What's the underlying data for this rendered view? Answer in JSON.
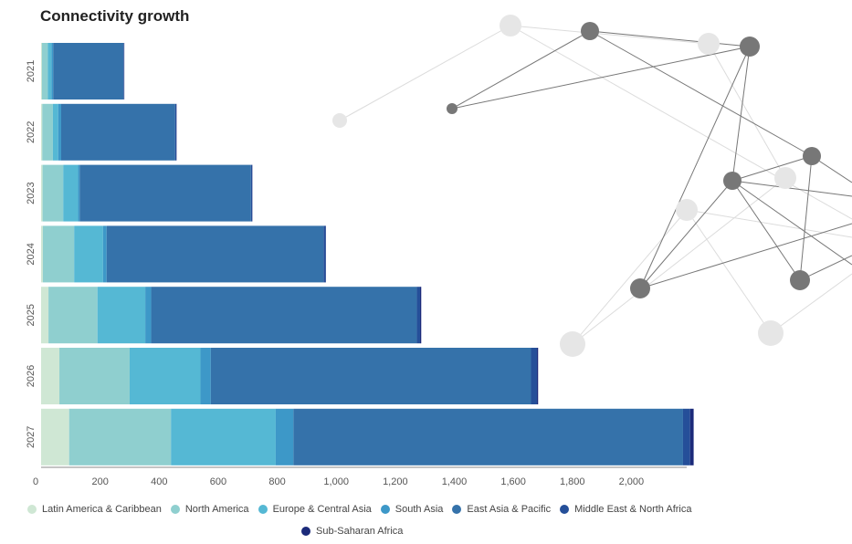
{
  "title": "Connectivity growth",
  "chart_data": {
    "type": "bar",
    "orientation": "horizontal",
    "stacked": true,
    "title": "Connectivity growth",
    "categories": [
      "2021",
      "2022",
      "2023",
      "2024",
      "2025",
      "2026",
      "2027"
    ],
    "xlim": [
      0,
      2200
    ],
    "xticks": [
      0,
      200,
      400,
      600,
      800,
      1000,
      1200,
      1400,
      1600,
      1800,
      2000
    ],
    "xtick_labels": [
      "0",
      "200",
      "400",
      "600",
      "800",
      "1,000",
      "1,200",
      "1,400",
      "1,600",
      "1,800",
      "2,000"
    ],
    "grid": false,
    "legend_position": "bottom",
    "series": [
      {
        "name": "Latin America & Caribbean",
        "color": "#cfe7d4",
        "values": [
          3,
          4,
          5,
          6,
          25,
          62,
          95
        ]
      },
      {
        "name": "North America",
        "color": "#8fcfcf",
        "values": [
          20,
          36,
          70,
          106,
          166,
          238,
          345
        ]
      },
      {
        "name": "Europe & Central Asia",
        "color": "#55b8d4",
        "values": [
          12,
          18,
          50,
          98,
          162,
          240,
          355
        ]
      },
      {
        "name": "South Asia",
        "color": "#3d98c8",
        "values": [
          6,
          10,
          6,
          12,
          20,
          35,
          60
        ]
      },
      {
        "name": "East Asia & Pacific",
        "color": "#3572aa",
        "values": [
          238,
          386,
          580,
          735,
          900,
          1085,
          1320
        ]
      },
      {
        "name": "Middle East & North Africa",
        "color": "#254f99",
        "values": [
          2,
          4,
          4,
          7,
          11,
          20,
          24
        ]
      },
      {
        "name": "Sub-Saharan Africa",
        "color": "#1b2a7a",
        "values": [
          1,
          1,
          1,
          1,
          4,
          4,
          12
        ]
      }
    ]
  }
}
